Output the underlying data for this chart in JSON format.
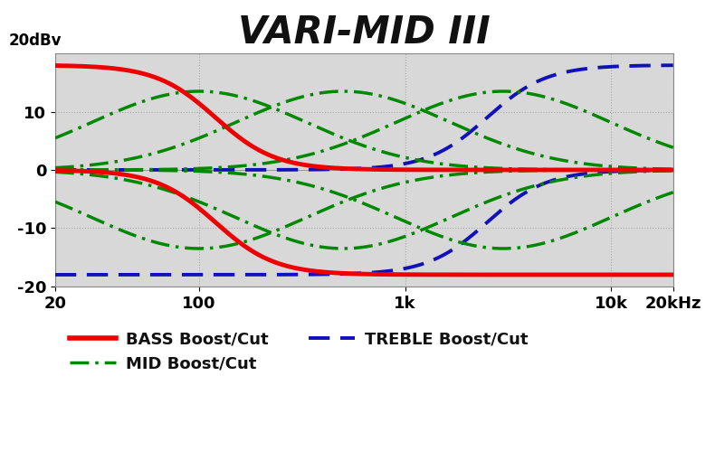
{
  "title": "VARI-MID III",
  "ylabel": "20dBv",
  "xlabel_ticks": [
    "20",
    "100",
    "1k",
    "10k",
    "20kHz"
  ],
  "xlabel_vals": [
    20,
    100,
    1000,
    10000,
    20000
  ],
  "ylim": [
    -20,
    20
  ],
  "xlim": [
    20,
    20000
  ],
  "bg_color": "#d8d8d8",
  "fig_color": "#ffffff",
  "bass_color": "#ee0000",
  "mid_color": "#008800",
  "treble_color": "#1111bb",
  "grid_color": "#bbbbbb",
  "title_fontsize": 30,
  "tick_fontsize": 13,
  "legend_fontsize": 13,
  "bass_lw": 3.5,
  "mid_lw": 2.5,
  "treble_lw": 2.8,
  "mid_freqs": [
    100,
    500,
    3000
  ],
  "mid_gain": 13.5,
  "bass_f0": 120,
  "bass_gain": 18.0,
  "treble_f0": 2500,
  "treble_gain": 18.0,
  "legend_items": [
    {
      "label": "BASS Boost/Cut",
      "color": "#ee0000",
      "ls": "solid",
      "lw": 3.5
    },
    {
      "label": "MID Boost/Cut",
      "color": "#008800",
      "ls": "dashdot",
      "lw": 2.5
    },
    {
      "label": "TREBLE Boost/Cut",
      "color": "#1111bb",
      "ls": "dashed",
      "lw": 2.8
    }
  ]
}
